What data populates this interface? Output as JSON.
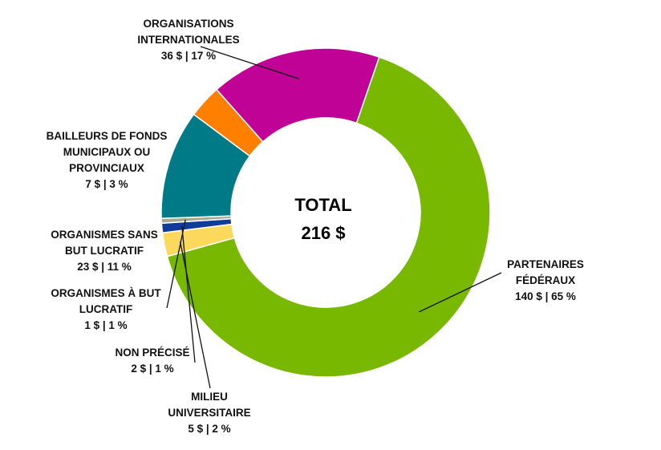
{
  "chart_data": {
    "type": "pie",
    "donut": true,
    "center_label": "TOTAL",
    "center_value": "216 $",
    "slices": [
      {
        "name_lines": [
          "PARTENAIRES",
          "FÉDÉRAUX"
        ],
        "value": 140,
        "value_text": "140 $ | 65 %",
        "color": "#79b800"
      },
      {
        "name_lines": [
          "MILIEU",
          "UNIVERSITAIRE"
        ],
        "value": 5,
        "value_text": "5 $ | 2 %",
        "color": "#fcd85c"
      },
      {
        "name_lines": [
          "NON PRÉCISÉ"
        ],
        "value": 2,
        "value_text": "2 $ | 1 %",
        "color": "#0f3c9a"
      },
      {
        "name_lines": [
          "ORGANISMES À BUT",
          "LUCRATIF"
        ],
        "value": 1,
        "value_text": "1 $ | 1 %",
        "color": "#a7a98e"
      },
      {
        "name_lines": [
          "ORGANISMES SANS",
          "BUT LUCRATIF"
        ],
        "value": 23,
        "value_text": "23 $ | 11 %",
        "color": "#007a86"
      },
      {
        "name_lines": [
          "BAILLEURS DE FONDS",
          "MUNICIPAUX OU",
          "PROVINCIAUX"
        ],
        "value": 7,
        "value_text": "7 $ | 3 %",
        "color": "#ff7f00"
      },
      {
        "name_lines": [
          "ORGANISATIONS",
          "INTERNATIONALES"
        ],
        "value": 36,
        "value_text": "36 $ | 17 %",
        "color": "#c00297"
      }
    ]
  }
}
